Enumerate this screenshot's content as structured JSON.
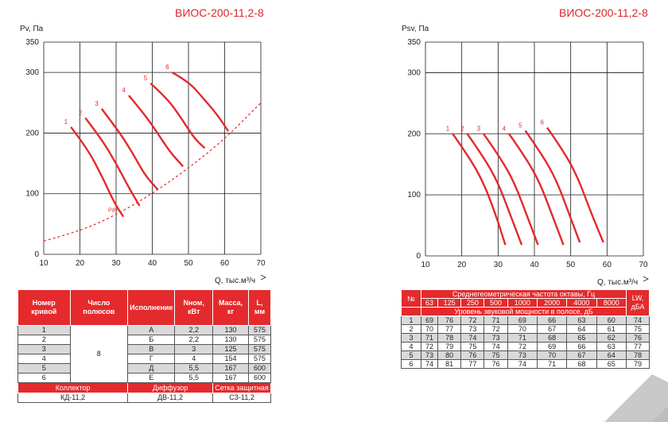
{
  "header": {
    "left_title": "ВИОС-200-11,2-8",
    "right_title": "ВИОС-200-11,2-8"
  },
  "chart_data": [
    {
      "type": "line",
      "ylabel": "Pv, Па",
      "xlabel": "Q, тыс.м³/ч",
      "xlim": [
        10,
        70
      ],
      "ylim": [
        0,
        350
      ],
      "xticks": [
        10,
        20,
        30,
        40,
        50,
        60,
        70
      ],
      "yticks": [
        0,
        100,
        200,
        300,
        350
      ],
      "grid": true,
      "series": [
        {
          "name": "1",
          "points": [
            [
              17.5,
              210
            ],
            [
              22,
              175
            ],
            [
              26,
              130
            ],
            [
              29.5,
              85
            ],
            [
              32,
              62
            ]
          ]
        },
        {
          "name": "2",
          "points": [
            [
              21.5,
              225
            ],
            [
              26,
              190
            ],
            [
              30,
              150
            ],
            [
              33.5,
              110
            ],
            [
              36.5,
              80
            ]
          ]
        },
        {
          "name": "3",
          "points": [
            [
              26,
              240
            ],
            [
              30.5,
              205
            ],
            [
              34.5,
              168
            ],
            [
              38,
              130
            ],
            [
              41.5,
              107
            ]
          ]
        },
        {
          "name": "4",
          "points": [
            [
              33.5,
              262
            ],
            [
              38,
              230
            ],
            [
              42,
              195
            ],
            [
              45,
              168
            ],
            [
              48.5,
              145
            ]
          ]
        },
        {
          "name": "5",
          "points": [
            [
              39.5,
              282
            ],
            [
              44,
              258
            ],
            [
              48,
              225
            ],
            [
              51.5,
              192
            ],
            [
              54.5,
              175
            ]
          ]
        },
        {
          "name": "6",
          "points": [
            [
              45.5,
              300
            ],
            [
              50,
              285
            ],
            [
              54,
              258
            ],
            [
              58,
              230
            ],
            [
              61,
              203
            ]
          ]
        },
        {
          "name": "Pdv",
          "dashed": true,
          "points": [
            [
              10,
              22
            ],
            [
              20,
              38
            ],
            [
              30,
              65
            ],
            [
              40,
              100
            ],
            [
              50,
              142
            ],
            [
              60,
              190
            ],
            [
              70,
              250
            ]
          ]
        }
      ]
    },
    {
      "type": "line",
      "ylabel": "Psv, Па",
      "xlabel": "Q, тыс.м³/ч",
      "xlim": [
        10,
        70
      ],
      "ylim": [
        0,
        350
      ],
      "xticks": [
        10,
        20,
        30,
        40,
        50,
        60,
        70
      ],
      "yticks": [
        0,
        100,
        200,
        300,
        350
      ],
      "grid": true,
      "series": [
        {
          "name": "1",
          "points": [
            [
              17.5,
              200
            ],
            [
              22,
              162
            ],
            [
              26,
              120
            ],
            [
              29.5,
              65
            ],
            [
              32,
              18
            ]
          ]
        },
        {
          "name": "2",
          "points": [
            [
              21.5,
              200
            ],
            [
              26,
              162
            ],
            [
              30,
              120
            ],
            [
              33.5,
              65
            ],
            [
              36.5,
              18
            ]
          ]
        },
        {
          "name": "3",
          "points": [
            [
              26,
              200
            ],
            [
              30.5,
              162
            ],
            [
              34.5,
              120
            ],
            [
              38,
              65
            ],
            [
              41,
              18
            ]
          ]
        },
        {
          "name": "4",
          "points": [
            [
              33,
              200
            ],
            [
              37.5,
              162
            ],
            [
              41.5,
              120
            ],
            [
              45,
              65
            ],
            [
              48,
              18
            ]
          ]
        },
        {
          "name": "5",
          "points": [
            [
              37.5,
              205
            ],
            [
              42,
              167
            ],
            [
              46,
              125
            ],
            [
              49.5,
              70
            ],
            [
              52.5,
              22
            ]
          ]
        },
        {
          "name": "6",
          "points": [
            [
              43.5,
              210
            ],
            [
              48,
              172
            ],
            [
              52,
              128
            ],
            [
              55.5,
              72
            ],
            [
              59,
              22
            ]
          ]
        }
      ]
    }
  ],
  "left_table": {
    "headers": [
      "Номер кривой",
      "Число полюсов",
      "Исполнение",
      "Nном, кВт",
      "Масса, кг",
      "L, мм"
    ],
    "poles": "8",
    "rows": [
      [
        "1",
        "А",
        "2,2",
        "130",
        "575"
      ],
      [
        "2",
        "Б",
        "2,2",
        "130",
        "575"
      ],
      [
        "3",
        "В",
        "3",
        "125",
        "575"
      ],
      [
        "4",
        "Г",
        "4",
        "154",
        "575"
      ],
      [
        "5",
        "Д",
        "5,5",
        "167",
        "600"
      ],
      [
        "6",
        "Е",
        "5,5",
        "167",
        "600"
      ]
    ],
    "accessory_headers": [
      "Коллектор",
      "Диффузор",
      "Сетка защитная"
    ],
    "accessory_values": [
      "КД-11,2",
      "ДВ-11,2",
      "СЗ-11,2"
    ]
  },
  "right_table": {
    "num_label": "№",
    "freq_title": "Среднегеометрическая частота октавы, Гц",
    "frequencies": [
      "63",
      "125",
      "250",
      "500",
      "1000",
      "2000",
      "4000",
      "8000"
    ],
    "lw_label": "LW, дБА",
    "level_title": "Уровень звуковой мощности в полосе, дБ",
    "rows": [
      [
        "1",
        "69",
        "76",
        "72",
        "71",
        "69",
        "66",
        "63",
        "60",
        "74"
      ],
      [
        "2",
        "70",
        "77",
        "73",
        "72",
        "70",
        "67",
        "64",
        "61",
        "75"
      ],
      [
        "3",
        "71",
        "78",
        "74",
        "73",
        "71",
        "68",
        "65",
        "62",
        "76"
      ],
      [
        "4",
        "72",
        "79",
        "75",
        "74",
        "72",
        "69",
        "66",
        "63",
        "77"
      ],
      [
        "5",
        "73",
        "80",
        "76",
        "75",
        "73",
        "70",
        "67",
        "64",
        "78"
      ],
      [
        "6",
        "74",
        "81",
        "77",
        "76",
        "74",
        "71",
        "68",
        "65",
        "79"
      ]
    ]
  },
  "colors": {
    "curve": "#e42a2c",
    "header_bg": "#e42a2c",
    "alt_row": "#d9d9d9",
    "grid": "#1a1a1a"
  }
}
